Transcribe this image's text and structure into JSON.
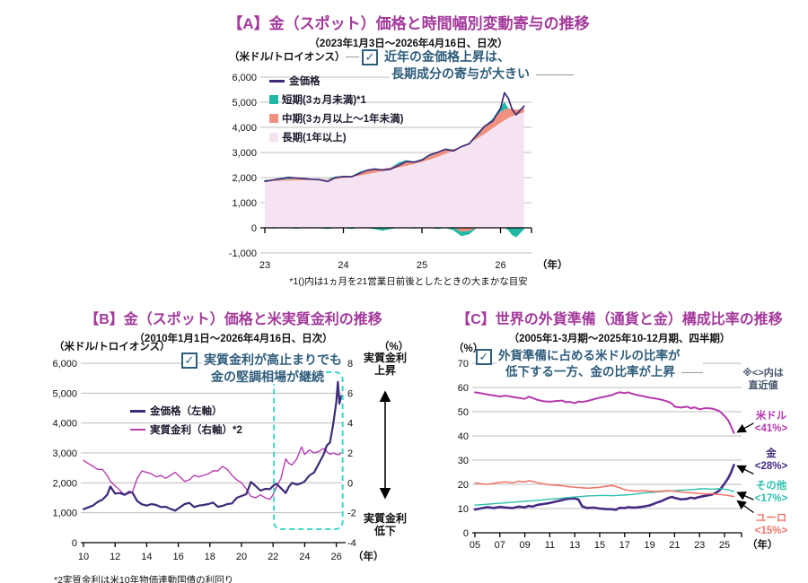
{
  "ui": {
    "check_glyph": "✓"
  },
  "colors": {
    "title": "#A3399B",
    "callout": "#2F5D7C",
    "gold_line": "#3E2A78",
    "short": "#21B8A6",
    "mid": "#F0907E",
    "long": "#F6E3F2",
    "real_rate": "#B73DB2",
    "usd": "#B539AC",
    "gold_c": "#452B85",
    "others": "#2BBFAD",
    "euro": "#F2766B",
    "note": "#44546A",
    "grid": "#BDBDBD",
    "box": "#3FD6C3"
  },
  "panels": {
    "a": {
      "title": "【A】金（スポット）価格と時間幅別変動寄与の推移",
      "subtitle": "（2023年1月3日～2026年4月16日、日次）",
      "unit_left": "（米ドル/トロイオンス）",
      "callout_line1": "近年の金価格上昇は、",
      "callout_line2": "長期成分の寄与が大きい",
      "legend": [
        "金価格",
        "短期(3ヵ月未満)*1",
        "中期(3ヵ月以上～1年未満)",
        "長期(1年以上)"
      ],
      "footnote": "*1()内は1ヵ月を21営業日前後としたときの大まかな目安"
    },
    "b": {
      "title": "【B】金（スポット）価格と米実質金利の推移",
      "subtitle": "（2010年1月1日～2026年4月16日、日次）",
      "unit_left": "（米ドル/トロイオンス）",
      "unit_right": "（%）",
      "callout_line1": "実質金利が高止まりでも",
      "callout_line2": "金の堅調相場が継続",
      "legend": [
        "金価格（左軸）",
        "実質金利（右軸）*2"
      ],
      "annotation_top_line1": "実質金利",
      "annotation_top_line2": "上昇",
      "annotation_bottom_line1": "実質金利",
      "annotation_bottom_line2": "低下",
      "footnote": "*2実質金利は米10年物価連動国債の利回り"
    },
    "c": {
      "title": "【C】世界の外貨準備（通貨と金）構成比率の推移",
      "subtitle": "（2005年1-3月期～2025年10-12月期、四半期）",
      "unit_left": "（%）",
      "callout_line1": "外貨準備に占める米ドルの比率が",
      "callout_line2": "低下する一方、金の比率が上昇",
      "note_line1": "※<>内は",
      "note_line2": "直近値",
      "series_labels": [
        {
          "name": "米ドル",
          "value": "<41%>"
        },
        {
          "name": "金",
          "value": "<28%>"
        },
        {
          "name": "その他",
          "value": "<17%>"
        },
        {
          "name": "ユーロ",
          "value": "<15%>"
        }
      ]
    }
  },
  "chart_data": [
    {
      "id": "A",
      "type": "area",
      "title": "金（スポット）価格と時間幅別変動寄与の推移",
      "x_unit": "（年）",
      "x_range": [
        23,
        26.35
      ],
      "y_range": [
        -1000,
        6000
      ],
      "x_ticks": [
        {
          "v": 23,
          "label": "23"
        },
        {
          "v": 24,
          "label": "24"
        },
        {
          "v": 25,
          "label": "25"
        },
        {
          "v": 26,
          "label": "26"
        }
      ],
      "y_ticks": [
        {
          "v": 6000,
          "label": "6,000"
        },
        {
          "v": 5000,
          "label": "5,000"
        },
        {
          "v": 4000,
          "label": "4,000"
        },
        {
          "v": 3000,
          "label": "3,000"
        },
        {
          "v": 2000,
          "label": "2,000"
        },
        {
          "v": 1000,
          "label": "1,000"
        },
        {
          "v": 0,
          "label": "0"
        },
        {
          "v": -1000,
          "label": "-1,000"
        }
      ],
      "x": [
        23.0,
        23.1,
        23.2,
        23.3,
        23.4,
        23.5,
        23.6,
        23.7,
        23.8,
        23.9,
        24.0,
        24.1,
        24.2,
        24.3,
        24.4,
        24.5,
        24.6,
        24.7,
        24.8,
        24.9,
        25.0,
        25.1,
        25.2,
        25.3,
        25.4,
        25.5,
        25.6,
        25.7,
        25.8,
        25.9,
        26.0,
        26.05,
        26.1,
        26.15,
        26.2,
        26.3
      ],
      "series": [
        {
          "name": "長期(1年以上)",
          "key": "long",
          "color": "#F6E3F2",
          "values": [
            1840,
            1860,
            1875,
            1885,
            1895,
            1900,
            1905,
            1910,
            1920,
            1945,
            1985,
            2025,
            2075,
            2135,
            2195,
            2260,
            2330,
            2400,
            2470,
            2545,
            2625,
            2720,
            2825,
            2945,
            3075,
            3215,
            3370,
            3545,
            3745,
            3965,
            4180,
            4280,
            4370,
            4440,
            4500,
            4600
          ]
        },
        {
          "name": "中期(3ヵ月以上～1年未満)",
          "key": "mid",
          "color": "#F0907E",
          "values": [
            30,
            50,
            40,
            60,
            60,
            30,
            20,
            10,
            20,
            40,
            50,
            30,
            70,
            130,
            130,
            90,
            70,
            130,
            170,
            100,
            70,
            130,
            170,
            150,
            60,
            -150,
            -120,
            100,
            260,
            340,
            430,
            430,
            390,
            300,
            200,
            160
          ]
        },
        {
          "name": "短期(3ヵ月未満)",
          "key": "short",
          "color": "#21B8A6",
          "values": [
            40,
            -30,
            70,
            90,
            -40,
            30,
            20,
            -20,
            -50,
            60,
            20,
            -50,
            80,
            50,
            -60,
            -110,
            -50,
            70,
            50,
            -30,
            50,
            70,
            -50,
            50,
            -100,
            -180,
            -140,
            120,
            60,
            40,
            200,
            300,
            -100,
            -300,
            -380,
            -60
          ]
        },
        {
          "name": "金価格",
          "key": "price",
          "type": "line",
          "color": "#3E2A78",
          "values": [
            1850,
            1905,
            1950,
            2010,
            1985,
            1955,
            1930,
            1915,
            1845,
            2000,
            2045,
            2030,
            2160,
            2290,
            2340,
            2300,
            2335,
            2480,
            2640,
            2615,
            2700,
            2905,
            3005,
            3130,
            3060,
            3230,
            3345,
            3700,
            4050,
            4250,
            4750,
            5380,
            5150,
            4700,
            4500,
            4850
          ]
        }
      ]
    },
    {
      "id": "B",
      "type": "line",
      "title": "金（スポット）価格と米実質金利の推移",
      "x_unit": "（年）",
      "x_range": [
        10,
        26.35
      ],
      "y_range_left": [
        0,
        6000
      ],
      "y_range_right": [
        -4,
        8
      ],
      "x_ticks": [
        {
          "v": 10,
          "label": "10"
        },
        {
          "v": 12,
          "label": "12"
        },
        {
          "v": 14,
          "label": "14"
        },
        {
          "v": 16,
          "label": "16"
        },
        {
          "v": 18,
          "label": "18"
        },
        {
          "v": 20,
          "label": "20"
        },
        {
          "v": 22,
          "label": "22"
        },
        {
          "v": 24,
          "label": "24"
        },
        {
          "v": 26,
          "label": "26"
        }
      ],
      "y_ticks_left": [
        {
          "v": 0,
          "label": "0"
        },
        {
          "v": 1000,
          "label": "1,000"
        },
        {
          "v": 2000,
          "label": "2,000"
        },
        {
          "v": 3000,
          "label": "3,000"
        },
        {
          "v": 4000,
          "label": "4,000"
        },
        {
          "v": 5000,
          "label": "5,000"
        },
        {
          "v": 6000,
          "label": "6,000"
        }
      ],
      "y_ticks_right": [
        {
          "v": 8,
          "label": "8"
        },
        {
          "v": 6,
          "label": "6"
        },
        {
          "v": 4,
          "label": "4"
        },
        {
          "v": 2,
          "label": "2"
        },
        {
          "v": 0,
          "label": "0"
        },
        {
          "v": -2,
          "label": "-2"
        },
        {
          "v": -4,
          "label": "-4"
        }
      ],
      "highlight_box": {
        "x0": 22.05,
        "x1": 26.4,
        "y0": 450,
        "y1": 5700
      },
      "x": [
        10.0,
        10.3,
        10.6,
        10.9,
        11.2,
        11.5,
        11.7,
        12.0,
        12.3,
        12.6,
        12.9,
        13.1,
        13.4,
        13.7,
        14.0,
        14.3,
        14.6,
        14.9,
        15.2,
        15.5,
        15.8,
        16.1,
        16.4,
        16.7,
        17.0,
        17.3,
        17.6,
        17.9,
        18.2,
        18.5,
        18.8,
        19.1,
        19.4,
        19.7,
        20.0,
        20.3,
        20.6,
        20.9,
        21.2,
        21.5,
        21.8,
        22.0,
        22.2,
        22.5,
        22.8,
        23.0,
        23.2,
        23.5,
        23.8,
        24.0,
        24.3,
        24.6,
        24.9,
        25.2,
        25.4,
        25.6,
        25.8,
        26.0,
        26.1,
        26.2,
        26.3
      ],
      "series": [
        {
          "name": "金価格（左軸）",
          "axis": "left",
          "color": "#3E2A78",
          "values": [
            1120,
            1180,
            1240,
            1360,
            1440,
            1600,
            1880,
            1640,
            1660,
            1600,
            1700,
            1670,
            1390,
            1280,
            1240,
            1290,
            1260,
            1190,
            1200,
            1130,
            1070,
            1180,
            1290,
            1330,
            1190,
            1240,
            1260,
            1290,
            1340,
            1200,
            1230,
            1290,
            1310,
            1500,
            1560,
            1620,
            2030,
            1890,
            1740,
            1800,
            1790,
            1900,
            1970,
            1820,
            1660,
            1870,
            2000,
            1940,
            1990,
            2050,
            2250,
            2350,
            2650,
            2950,
            3250,
            3350,
            3950,
            4700,
            5380,
            4650,
            4900
          ]
        },
        {
          "name": "実質金利（右軸）",
          "axis": "right",
          "color": "#B73DB2",
          "values": [
            1.5,
            1.3,
            1.1,
            0.9,
            0.9,
            0.5,
            0.1,
            -0.2,
            -0.5,
            -0.8,
            -0.7,
            -0.6,
            0.3,
            0.8,
            0.7,
            0.6,
            0.4,
            0.5,
            0.3,
            0.5,
            0.7,
            0.4,
            0.1,
            0.2,
            0.5,
            0.4,
            0.5,
            0.6,
            0.8,
            0.8,
            1.1,
            0.9,
            0.5,
            0.2,
            0.0,
            -0.4,
            -0.9,
            -1.0,
            -0.8,
            -1.0,
            -1.1,
            -0.8,
            -0.3,
            0.3,
            1.6,
            1.3,
            1.2,
            1.6,
            2.4,
            1.9,
            2.2,
            2.0,
            2.1,
            2.3,
            2.1,
            1.9,
            2.0,
            1.9,
            1.9,
            1.9,
            2.0
          ]
        }
      ]
    },
    {
      "id": "C",
      "type": "line",
      "title": "世界の外貨準備（通貨と金）構成比率の推移",
      "x_unit": "（年）",
      "x_range": [
        4.9,
        26.2
      ],
      "y_range": [
        0,
        70
      ],
      "x_ticks": [
        {
          "v": 5,
          "label": "05"
        },
        {
          "v": 7,
          "label": "07"
        },
        {
          "v": 9,
          "label": "09"
        },
        {
          "v": 11,
          "label": "11"
        },
        {
          "v": 13,
          "label": "13"
        },
        {
          "v": 15,
          "label": "15"
        },
        {
          "v": 17,
          "label": "17"
        },
        {
          "v": 19,
          "label": "19"
        },
        {
          "v": 21,
          "label": "21"
        },
        {
          "v": 23,
          "label": "23"
        },
        {
          "v": 25,
          "label": "25"
        }
      ],
      "y_ticks": [
        {
          "v": 70,
          "label": "70"
        },
        {
          "v": 60,
          "label": "60"
        },
        {
          "v": 50,
          "label": "50"
        },
        {
          "v": 40,
          "label": "40"
        },
        {
          "v": 30,
          "label": "30"
        },
        {
          "v": 20,
          "label": "20"
        },
        {
          "v": 10,
          "label": "10"
        },
        {
          "v": 0,
          "label": "0"
        }
      ],
      "latest_pct": {
        "米ドル": 41,
        "金": 28,
        "その他": 17,
        "ユーロ": 15
      },
      "x": [
        5.0,
        5.5,
        6.0,
        6.5,
        7.0,
        7.5,
        8.0,
        8.5,
        9.0,
        9.3,
        9.6,
        10.0,
        10.5,
        11.0,
        11.5,
        12.0,
        12.3,
        12.6,
        13.0,
        13.3,
        13.6,
        14.0,
        14.5,
        15.0,
        15.5,
        16.0,
        16.3,
        16.6,
        17.0,
        17.3,
        17.6,
        18.0,
        18.5,
        19.0,
        19.5,
        20.0,
        20.5,
        20.8,
        21.0,
        21.5,
        22.0,
        22.3,
        22.6,
        23.0,
        23.5,
        24.0,
        24.3,
        24.6,
        25.0,
        25.3,
        25.5,
        25.75
      ],
      "series": [
        {
          "name": "米ドル",
          "color": "#B539AC",
          "width": 2,
          "values": [
            58.0,
            57.6,
            57.1,
            56.7,
            56.3,
            56.6,
            56.1,
            55.7,
            55.3,
            56.2,
            55.7,
            54.9,
            54.3,
            54.1,
            54.4,
            54.6,
            53.9,
            54.1,
            53.5,
            54.2,
            54.0,
            54.4,
            55.1,
            55.8,
            56.3,
            56.9,
            57.6,
            58.0,
            57.7,
            58.0,
            57.4,
            56.9,
            56.4,
            55.8,
            55.4,
            54.9,
            54.1,
            53.3,
            52.1,
            51.7,
            52.1,
            51.4,
            51.8,
            51.0,
            51.5,
            51.3,
            50.8,
            50.2,
            48.3,
            46.4,
            44.3,
            41.2
          ]
        },
        {
          "name": "金",
          "color": "#452B85",
          "width": 2.6,
          "values": [
            9.6,
            10.1,
            10.6,
            10.2,
            10.7,
            10.4,
            10.2,
            10.8,
            10.5,
            11.1,
            10.8,
            11.5,
            11.9,
            12.3,
            12.9,
            13.5,
            13.9,
            14.1,
            14.2,
            13.7,
            10.9,
            10.2,
            10.4,
            10.0,
            9.8,
            9.7,
            9.5,
            10.3,
            10.2,
            10.6,
            10.4,
            10.5,
            10.8,
            11.3,
            12.3,
            13.2,
            14.4,
            14.8,
            14.4,
            13.8,
            14.0,
            14.5,
            14.2,
            14.8,
            15.3,
            15.8,
            16.5,
            17.5,
            20.3,
            22.6,
            24.6,
            28.0
          ]
        },
        {
          "name": "その他",
          "color": "#2BBFAD",
          "width": 1.4,
          "values": [
            11.4,
            11.6,
            11.8,
            12.0,
            12.2,
            12.4,
            12.6,
            12.8,
            13.0,
            13.1,
            13.2,
            13.4,
            13.6,
            13.9,
            14.1,
            14.3,
            14.5,
            14.6,
            14.8,
            14.9,
            15.0,
            15.2,
            15.3,
            15.4,
            15.4,
            15.3,
            15.4,
            15.5,
            15.6,
            15.7,
            15.8,
            16.1,
            16.4,
            16.6,
            16.8,
            17.0,
            17.2,
            17.3,
            17.4,
            17.6,
            17.7,
            17.8,
            17.9,
            18.1,
            18.2,
            18.0,
            18.1,
            18.2,
            18.0,
            17.8,
            17.4,
            17.0
          ]
        },
        {
          "name": "ユーロ",
          "color": "#F2766B",
          "width": 1.6,
          "values": [
            20.6,
            20.2,
            20.0,
            20.4,
            20.8,
            21.0,
            20.6,
            21.3,
            21.0,
            21.5,
            21.2,
            20.7,
            20.2,
            19.8,
            19.6,
            19.4,
            19.2,
            19.0,
            18.8,
            18.7,
            18.6,
            18.4,
            18.6,
            18.8,
            19.2,
            19.5,
            19.1,
            18.6,
            17.8,
            17.5,
            17.3,
            17.2,
            17.4,
            17.2,
            17.0,
            17.2,
            17.4,
            17.2,
            17.1,
            16.9,
            16.6,
            16.5,
            16.4,
            16.2,
            16.0,
            16.2,
            15.9,
            15.8,
            15.6,
            15.4,
            15.2,
            15.0
          ]
        }
      ]
    }
  ]
}
